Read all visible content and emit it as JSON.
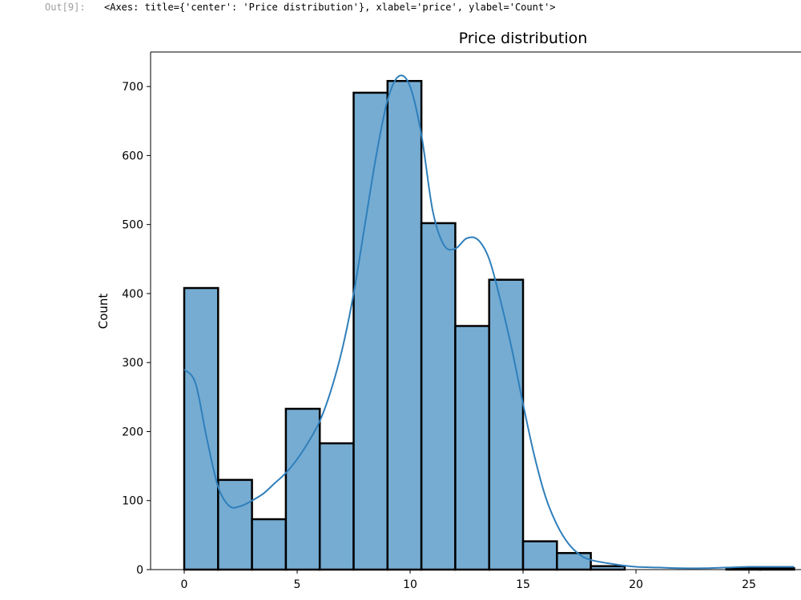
{
  "cell_output": {
    "prompt": "Out[9]:",
    "repr": "<Axes: title={'center': 'Price distribution'}, xlabel='price', ylabel='Count'>"
  },
  "colors": {
    "bar_fill": "#76acd2",
    "bar_edge": "#000000",
    "kde_line": "#2f7fbb"
  },
  "chart_data": {
    "type": "bar",
    "title": "Price distribution",
    "xlabel": "price",
    "ylabel": "Count",
    "bin_edges": [
      0,
      1.5,
      3,
      4.5,
      6,
      7.5,
      9,
      10.5,
      12,
      13.5,
      15,
      16.5,
      18,
      19.5,
      21,
      22.5,
      24,
      25.5,
      27
    ],
    "values": [
      408,
      130,
      73,
      233,
      183,
      691,
      708,
      502,
      353,
      420,
      41,
      24,
      5,
      0,
      0,
      0,
      2,
      2
    ],
    "xlim": [
      -1,
      27
    ],
    "ylim": [
      0,
      750
    ],
    "xticks": [
      0,
      5,
      10,
      15,
      20,
      25
    ],
    "yticks": [
      0,
      100,
      200,
      300,
      400,
      500,
      600,
      700
    ],
    "kde": {
      "x": [
        0,
        0.5,
        1,
        1.5,
        2,
        2.5,
        3,
        3.5,
        4,
        4.5,
        5,
        5.5,
        6,
        6.5,
        7,
        7.5,
        8,
        8.5,
        9,
        9.5,
        10,
        10.5,
        11,
        11.5,
        12,
        12.5,
        13,
        13.5,
        14,
        14.5,
        15,
        15.5,
        16,
        16.5,
        17,
        17.5,
        18,
        19,
        20,
        21,
        22,
        23,
        24,
        25,
        26,
        27
      ],
      "y": [
        290,
        270,
        190,
        120,
        92,
        92,
        100,
        110,
        125,
        140,
        160,
        185,
        215,
        260,
        320,
        400,
        500,
        600,
        680,
        715,
        700,
        630,
        520,
        470,
        465,
        480,
        478,
        450,
        390,
        320,
        240,
        165,
        105,
        65,
        38,
        22,
        14,
        8,
        4,
        3,
        2,
        2,
        3,
        4,
        4,
        4
      ]
    },
    "legend": "none",
    "grid": false
  }
}
